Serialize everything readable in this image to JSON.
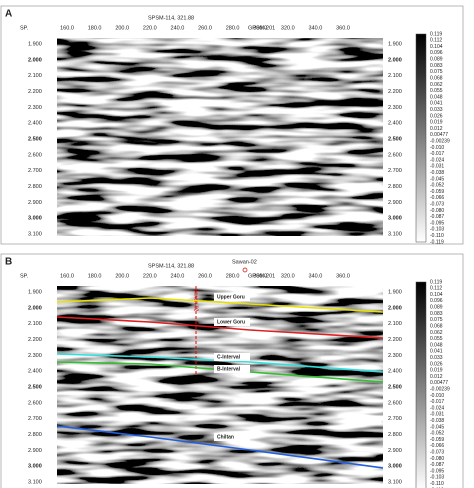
{
  "panels": [
    {
      "label": "A",
      "shotpoint": "SPSM-114, 321.88",
      "line": "GPSM-201",
      "sp": "SP.",
      "xticks": [
        "160.0",
        "180.0",
        "200.0",
        "220.0",
        "240.0",
        "260.0",
        "280.0",
        "300.0",
        "320.0",
        "340.0",
        "360.0"
      ],
      "yticks_left": [
        "1.900",
        "2.000",
        "2.100",
        "2.200",
        "2.300",
        "2.400",
        "2.500",
        "2.600",
        "2.700",
        "2.800",
        "2.900",
        "3.000",
        "3.100"
      ],
      "yticks_right": [
        "1.900",
        "2.000",
        "2.100",
        "2.200",
        "2.300",
        "2.400",
        "2.500",
        "2.600",
        "2.700",
        "2.800",
        "2.900",
        "3.000",
        "3.100"
      ],
      "colorbar": [
        "0.119",
        "0.112",
        "0.104",
        "0.096",
        "0.089",
        "0.083",
        "0.075",
        "0.068",
        "0.062",
        "0.055",
        "0.048",
        "0.041",
        "0.033",
        "0.026",
        "0.019",
        "0.012",
        "0.00477",
        "-0.00239",
        "-0.010",
        "-0.017",
        "-0.024",
        "-0.031",
        "-0.038",
        "-0.045",
        "-0.052",
        "-0.059",
        "-0.066",
        "-0.073",
        "-0.080",
        "-0.087",
        "-0.095",
        "-0.103",
        "-0.110",
        "-0.119"
      ]
    },
    {
      "label": "B",
      "shotpoint": "SPSM-114, 321.88",
      "line": "GPSM-201",
      "sp": "SP.",
      "well": "Sawan-02",
      "xticks": [
        "160.0",
        "180.0",
        "200.0",
        "220.0",
        "240.0",
        "260.0",
        "280.0",
        "300.0",
        "320.0",
        "340.0",
        "360.0"
      ],
      "yticks_left": [
        "1.900",
        "2.000",
        "2.100",
        "2.200",
        "2.300",
        "2.400",
        "2.500",
        "2.600",
        "2.700",
        "2.800",
        "2.900",
        "3.000",
        "3.100"
      ],
      "yticks_right": [
        "1.900",
        "2.000",
        "2.100",
        "2.200",
        "2.300",
        "2.400",
        "2.500",
        "2.600",
        "2.700",
        "2.800",
        "2.900",
        "3.000",
        "3.100"
      ],
      "colorbar": [
        "0.119",
        "0.112",
        "0.104",
        "0.096",
        "0.089",
        "0.083",
        "0.075",
        "0.068",
        "0.062",
        "0.055",
        "0.048",
        "0.041",
        "0.033",
        "0.026",
        "0.019",
        "0.012",
        "0.00477",
        "-0.00239",
        "-0.010",
        "-0.017",
        "-0.024",
        "-0.031",
        "-0.038",
        "-0.045",
        "-0.052",
        "-0.059",
        "-0.066",
        "-0.073",
        "-0.080",
        "-0.087",
        "-0.095",
        "-0.103",
        "-0.110",
        "-0.119"
      ],
      "horizons": [
        "Upper Goru",
        "Lower Goru",
        "C-Interval",
        "B-Interval",
        "Chiltan"
      ]
    }
  ]
}
